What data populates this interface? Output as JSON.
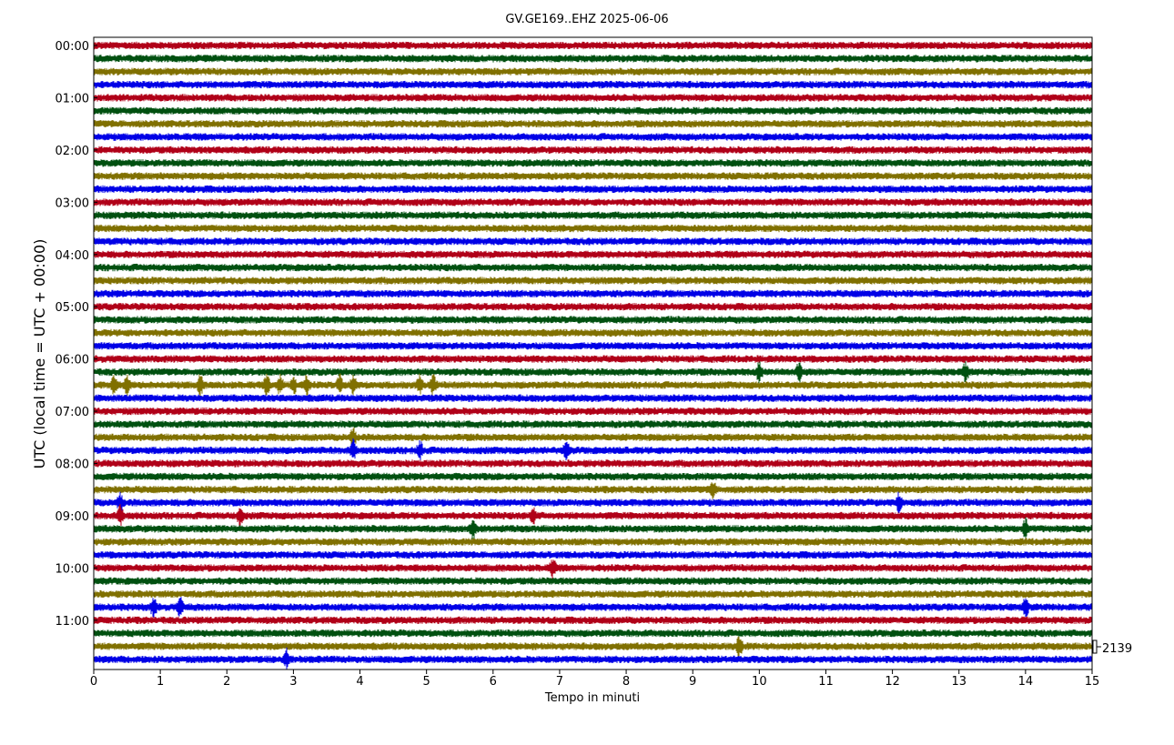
{
  "chart_data": {
    "type": "line",
    "title": "GV.GE169..EHZ 2025-06-06",
    "xlabel": "Tempo in minuti",
    "ylabel": "UTC (local time = UTC + 00:00)",
    "xlim": [
      0,
      15
    ],
    "x_ticks": [
      "0",
      "1",
      "2",
      "3",
      "4",
      "5",
      "6",
      "7",
      "8",
      "9",
      "10",
      "11",
      "12",
      "13",
      "14",
      "15"
    ],
    "y_ticks": [
      "00:00",
      "01:00",
      "02:00",
      "03:00",
      "04:00",
      "05:00",
      "06:00",
      "07:00",
      "08:00",
      "09:00",
      "10:00",
      "11:00"
    ],
    "trace_interval_minutes": 15,
    "trace_count": 48,
    "trace_colors": [
      "#b00018",
      "#005010",
      "#807000",
      "#0000e6"
    ],
    "scale_label": "2139",
    "grid": false,
    "events": [
      {
        "trace": 26,
        "minutes": [
          0.3,
          0.5,
          1.6,
          2.6,
          2.8,
          3.0,
          3.2,
          3.7,
          3.9,
          4.9,
          5.1
        ]
      },
      {
        "trace": 25,
        "minutes": [
          10.0,
          10.6,
          13.1
        ]
      },
      {
        "trace": 30,
        "minutes": [
          3.9
        ]
      },
      {
        "trace": 31,
        "minutes": [
          3.9,
          4.9,
          7.1
        ]
      },
      {
        "trace": 34,
        "minutes": [
          9.3
        ]
      },
      {
        "trace": 35,
        "minutes": [
          0.4,
          12.1
        ]
      },
      {
        "trace": 36,
        "minutes": [
          0.4,
          2.2,
          6.6
        ]
      },
      {
        "trace": 37,
        "minutes": [
          5.7,
          14.0
        ]
      },
      {
        "trace": 40,
        "minutes": [
          6.9
        ]
      },
      {
        "trace": 43,
        "minutes": [
          0.9,
          1.3,
          14.0
        ]
      },
      {
        "trace": 46,
        "minutes": [
          9.7
        ]
      },
      {
        "trace": 47,
        "minutes": [
          2.9
        ]
      }
    ]
  }
}
